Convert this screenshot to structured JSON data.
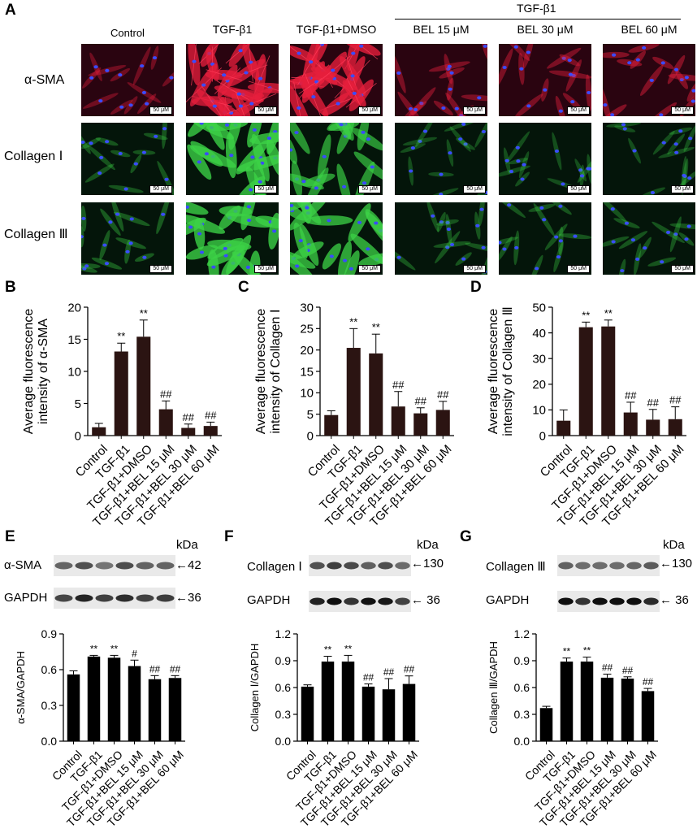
{
  "panel_a": {
    "letter": "A",
    "bracket_label": "TGF-β1",
    "columns": [
      "Control",
      "TGF-β1",
      "TGF-β1+DMSO",
      "BEL 15 μM",
      "BEL 30 μM",
      "BEL 60 μM"
    ],
    "rows": [
      {
        "label": "α-SMA",
        "stain": "red"
      },
      {
        "label": "Collagen Ⅰ",
        "stain": "green"
      },
      {
        "label": "Collagen Ⅲ",
        "stain": "green"
      }
    ],
    "scale_bar": "50 μM",
    "intensity": [
      [
        0.2,
        0.85,
        0.9,
        0.3,
        0.3,
        0.35
      ],
      [
        0.2,
        0.9,
        0.7,
        0.15,
        0.15,
        0.15
      ],
      [
        0.25,
        0.9,
        0.85,
        0.2,
        0.2,
        0.2
      ]
    ]
  },
  "categories": [
    "Control",
    "TGF-β1",
    "TGF-β1+DMSO",
    "TGF-β1+BEL 15 μM",
    "TGF-β1+BEL 30 μM",
    "TGF-β1+BEL 60 μM"
  ],
  "chart_data": [
    {
      "letter": "B",
      "type": "bar",
      "ylabel": "Average fluorescence intensity of α-SMA",
      "values": [
        1.3,
        13.1,
        15.4,
        4.1,
        1.2,
        1.5
      ],
      "errors": [
        0.6,
        1.3,
        2.6,
        1.3,
        0.6,
        0.6
      ],
      "annotations": [
        "",
        "**",
        "**",
        "##",
        "##",
        "##"
      ],
      "ylim": [
        0,
        20
      ],
      "yticks": [
        "0",
        "5",
        "10",
        "15",
        "20"
      ]
    },
    {
      "letter": "C",
      "type": "bar",
      "ylabel": "Average fluorescence intensity of Collagen Ⅰ",
      "values": [
        4.8,
        20.5,
        19.2,
        6.8,
        5.2,
        6.0
      ],
      "errors": [
        1.0,
        4.5,
        4.5,
        3.5,
        1.3,
        2.0
      ],
      "annotations": [
        "",
        "**",
        "**",
        "##",
        "##",
        "##"
      ],
      "ylim": [
        0,
        30
      ],
      "yticks": [
        "0",
        "5",
        "10",
        "15",
        "20",
        "25",
        "30"
      ]
    },
    {
      "letter": "D",
      "type": "bar",
      "ylabel": "Average fluorescence intensity of Collagen Ⅲ",
      "values": [
        5.8,
        42.2,
        42.5,
        9.0,
        6.2,
        6.4
      ],
      "errors": [
        4.2,
        2.0,
        2.5,
        4.0,
        4.0,
        4.8
      ],
      "annotations": [
        "",
        "**",
        "**",
        "##",
        "##",
        "##"
      ],
      "ylim": [
        0,
        50
      ],
      "yticks": [
        "0",
        "10",
        "20",
        "30",
        "40",
        "50"
      ]
    },
    {
      "letter": "E",
      "type": "bar",
      "ylabel": "α-SMA/GAPDH",
      "values": [
        0.56,
        0.71,
        0.7,
        0.63,
        0.52,
        0.53
      ],
      "errors": [
        0.03,
        0.01,
        0.02,
        0.05,
        0.03,
        0.02
      ],
      "annotations": [
        "",
        "**",
        "**",
        "#",
        "##",
        "##"
      ],
      "ylim": [
        0,
        0.9
      ],
      "yticks": [
        "0.0",
        "0.3",
        "0.6",
        "0.9"
      ]
    },
    {
      "letter": "F",
      "type": "bar",
      "ylabel": "Collagen Ⅰ/GAPDH",
      "values": [
        0.61,
        0.89,
        0.89,
        0.61,
        0.58,
        0.64
      ],
      "errors": [
        0.02,
        0.06,
        0.07,
        0.03,
        0.12,
        0.09
      ],
      "annotations": [
        "",
        "**",
        "**",
        "##",
        "##",
        "##"
      ],
      "ylim": [
        0,
        1.2
      ],
      "yticks": [
        "0.0",
        "0.3",
        "0.6",
        "0.9",
        "1.2"
      ]
    },
    {
      "letter": "G",
      "type": "bar",
      "ylabel": "Collagen Ⅲ/GAPDH",
      "values": [
        0.37,
        0.89,
        0.89,
        0.71,
        0.7,
        0.56
      ],
      "errors": [
        0.02,
        0.04,
        0.05,
        0.04,
        0.02,
        0.03
      ],
      "annotations": [
        "",
        "**",
        "**",
        "##",
        "##",
        "##"
      ],
      "ylim": [
        0,
        1.2
      ],
      "yticks": [
        "0.0",
        "0.3",
        "0.6",
        "0.9",
        "1.2"
      ]
    }
  ],
  "blots": {
    "kda": "kDa",
    "E": {
      "target": "α-SMA",
      "target_kda": "←42",
      "loading": "GAPDH",
      "loading_kda": "←36"
    },
    "F": {
      "target": "Collagen Ⅰ",
      "target_kda": "←130",
      "loading": "GAPDH",
      "loading_kda": "← 36"
    },
    "G": {
      "target": "Collagen Ⅲ",
      "target_kda": "←130",
      "loading": "GAPDH",
      "loading_kda": "← 36"
    }
  }
}
